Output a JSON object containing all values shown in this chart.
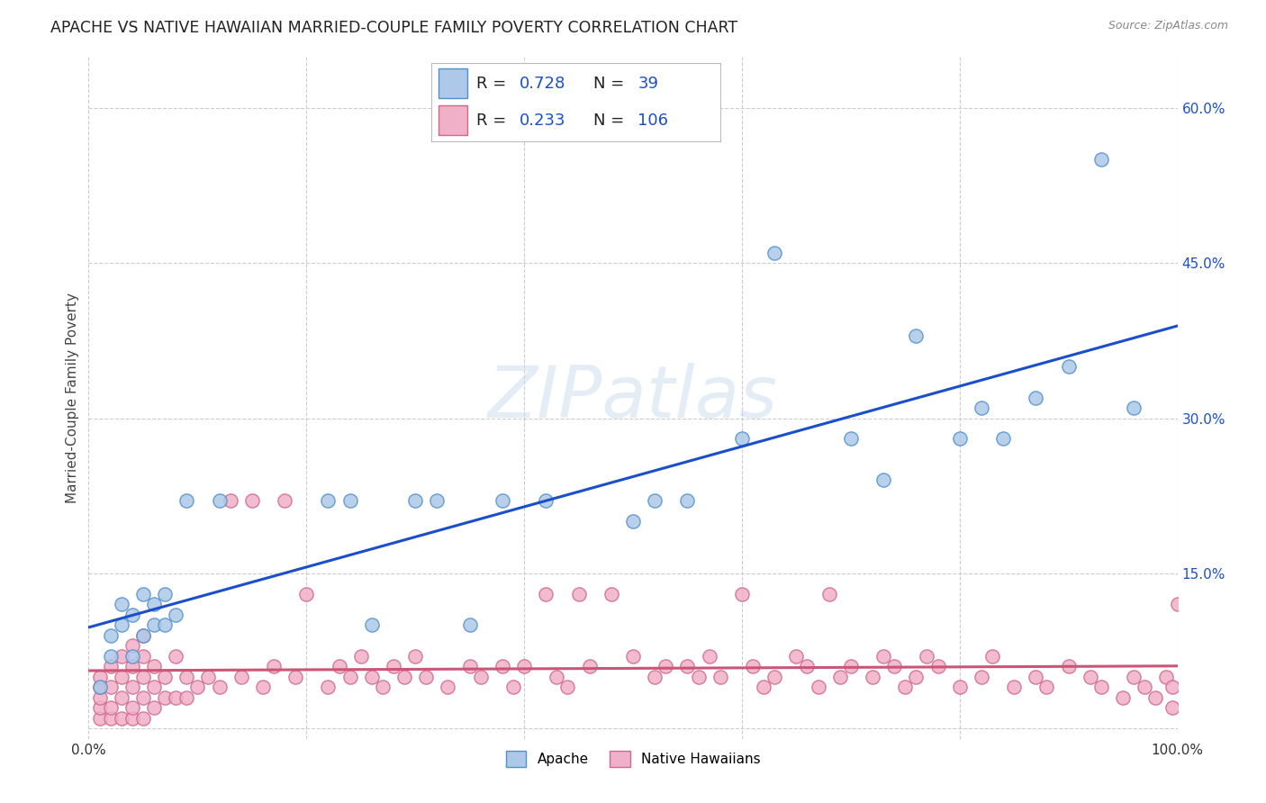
{
  "title": "APACHE VS NATIVE HAWAIIAN MARRIED-COUPLE FAMILY POVERTY CORRELATION CHART",
  "source": "Source: ZipAtlas.com",
  "ylabel": "Married-Couple Family Poverty",
  "xlim": [
    0,
    1.0
  ],
  "ylim": [
    -0.01,
    0.65
  ],
  "xticks": [
    0.0,
    0.2,
    0.4,
    0.6,
    0.8,
    1.0
  ],
  "xticklabels": [
    "0.0%",
    "",
    "",
    "",
    "",
    "100.0%"
  ],
  "yticks": [
    0.0,
    0.15,
    0.3,
    0.45,
    0.6
  ],
  "yticklabels_right": [
    "",
    "15.0%",
    "30.0%",
    "45.0%",
    "60.0%"
  ],
  "apache_color": "#adc8e8",
  "apache_edge": "#5090cc",
  "native_hawaiian_color": "#f0b0c8",
  "native_hawaiian_edge": "#d06888",
  "trend_apache_color": "#1a4fcc",
  "trend_native_color": "#cc5577",
  "legend_text_color": "#1a4fcc",
  "watermark": "ZIPatlas",
  "background_color": "#ffffff",
  "grid_color": "#cccccc",
  "title_fontsize": 12.5,
  "axis_fontsize": 11,
  "legend_fontsize": 13,
  "apache_x": [
    0.01,
    0.02,
    0.02,
    0.03,
    0.03,
    0.04,
    0.04,
    0.05,
    0.05,
    0.06,
    0.06,
    0.07,
    0.07,
    0.08,
    0.09,
    0.12,
    0.22,
    0.24,
    0.26,
    0.3,
    0.32,
    0.35,
    0.38,
    0.42,
    0.5,
    0.52,
    0.55,
    0.6,
    0.63,
    0.7,
    0.73,
    0.76,
    0.8,
    0.82,
    0.84,
    0.87,
    0.9,
    0.93,
    0.96
  ],
  "apache_y": [
    0.04,
    0.07,
    0.09,
    0.1,
    0.12,
    0.07,
    0.11,
    0.09,
    0.13,
    0.1,
    0.12,
    0.1,
    0.13,
    0.11,
    0.22,
    0.22,
    0.22,
    0.22,
    0.1,
    0.22,
    0.22,
    0.1,
    0.22,
    0.22,
    0.2,
    0.22,
    0.22,
    0.28,
    0.46,
    0.28,
    0.24,
    0.38,
    0.28,
    0.31,
    0.28,
    0.32,
    0.35,
    0.55,
    0.31
  ],
  "native_x": [
    0.01,
    0.01,
    0.01,
    0.01,
    0.01,
    0.02,
    0.02,
    0.02,
    0.02,
    0.03,
    0.03,
    0.03,
    0.03,
    0.04,
    0.04,
    0.04,
    0.04,
    0.04,
    0.05,
    0.05,
    0.05,
    0.05,
    0.05,
    0.06,
    0.06,
    0.06,
    0.07,
    0.07,
    0.08,
    0.08,
    0.09,
    0.09,
    0.1,
    0.11,
    0.12,
    0.13,
    0.14,
    0.15,
    0.16,
    0.17,
    0.18,
    0.19,
    0.2,
    0.22,
    0.23,
    0.24,
    0.25,
    0.26,
    0.27,
    0.28,
    0.29,
    0.3,
    0.31,
    0.33,
    0.35,
    0.36,
    0.38,
    0.39,
    0.4,
    0.42,
    0.43,
    0.44,
    0.45,
    0.46,
    0.48,
    0.5,
    0.52,
    0.53,
    0.55,
    0.56,
    0.57,
    0.58,
    0.6,
    0.61,
    0.62,
    0.63,
    0.65,
    0.66,
    0.67,
    0.68,
    0.69,
    0.7,
    0.72,
    0.73,
    0.74,
    0.75,
    0.76,
    0.77,
    0.78,
    0.8,
    0.82,
    0.83,
    0.85,
    0.87,
    0.88,
    0.9,
    0.92,
    0.93,
    0.95,
    0.96,
    0.97,
    0.98,
    0.99,
    0.995,
    1.0,
    0.995
  ],
  "native_y": [
    0.01,
    0.02,
    0.03,
    0.04,
    0.05,
    0.01,
    0.02,
    0.04,
    0.06,
    0.01,
    0.03,
    0.05,
    0.07,
    0.01,
    0.02,
    0.04,
    0.06,
    0.08,
    0.01,
    0.03,
    0.05,
    0.07,
    0.09,
    0.02,
    0.04,
    0.06,
    0.03,
    0.05,
    0.03,
    0.07,
    0.03,
    0.05,
    0.04,
    0.05,
    0.04,
    0.22,
    0.05,
    0.22,
    0.04,
    0.06,
    0.22,
    0.05,
    0.13,
    0.04,
    0.06,
    0.05,
    0.07,
    0.05,
    0.04,
    0.06,
    0.05,
    0.07,
    0.05,
    0.04,
    0.06,
    0.05,
    0.06,
    0.04,
    0.06,
    0.13,
    0.05,
    0.04,
    0.13,
    0.06,
    0.13,
    0.07,
    0.05,
    0.06,
    0.06,
    0.05,
    0.07,
    0.05,
    0.13,
    0.06,
    0.04,
    0.05,
    0.07,
    0.06,
    0.04,
    0.13,
    0.05,
    0.06,
    0.05,
    0.07,
    0.06,
    0.04,
    0.05,
    0.07,
    0.06,
    0.04,
    0.05,
    0.07,
    0.04,
    0.05,
    0.04,
    0.06,
    0.05,
    0.04,
    0.03,
    0.05,
    0.04,
    0.03,
    0.05,
    0.04,
    0.12,
    0.02
  ]
}
